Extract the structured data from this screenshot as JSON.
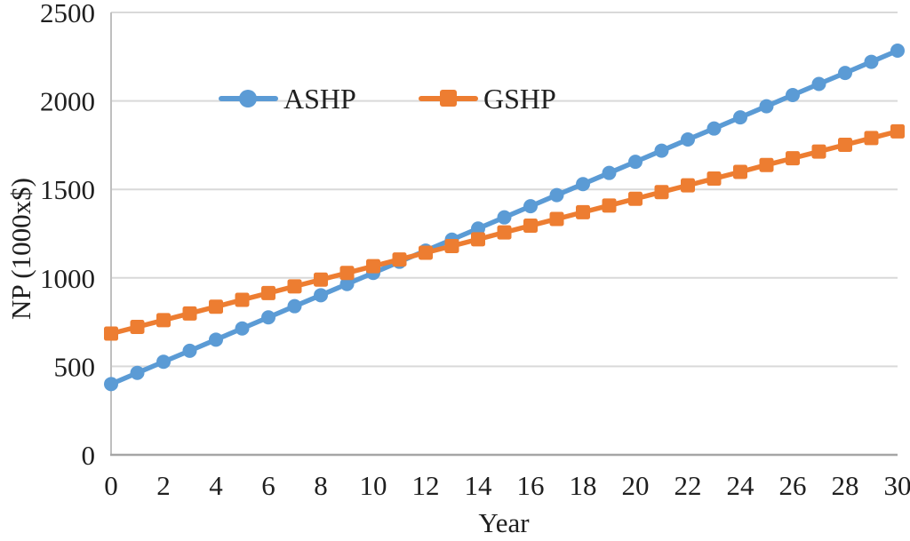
{
  "chart_data": {
    "type": "line",
    "title": "",
    "xlabel": "Year",
    "ylabel": "NP (1000x$)",
    "xlim": [
      0,
      30
    ],
    "ylim": [
      0,
      2500
    ],
    "xticks": [
      0,
      2,
      4,
      6,
      8,
      10,
      12,
      14,
      16,
      18,
      20,
      22,
      24,
      26,
      28,
      30
    ],
    "yticks": [
      0,
      500,
      1000,
      1500,
      2000,
      2500
    ],
    "grid": "horizontal",
    "legend_position": "top-inside",
    "x": [
      0,
      1,
      2,
      3,
      4,
      5,
      6,
      7,
      8,
      9,
      10,
      11,
      12,
      13,
      14,
      15,
      16,
      17,
      18,
      19,
      20,
      21,
      22,
      23,
      24,
      25,
      26,
      27,
      28,
      29,
      30
    ],
    "series": [
      {
        "name": "ASHP",
        "color": "#5B9BD5",
        "marker": "circle",
        "values": [
          400,
          463,
          526,
          588,
          651,
          714,
          777,
          840,
          902,
          965,
          1028,
          1091,
          1154,
          1216,
          1279,
          1342,
          1405,
          1468,
          1530,
          1593,
          1656,
          1719,
          1782,
          1844,
          1907,
          1970,
          2033,
          2096,
          2158,
          2221,
          2284
        ]
      },
      {
        "name": "GSHP",
        "color": "#ED7D31",
        "marker": "square",
        "values": [
          685,
          723,
          761,
          799,
          837,
          876,
          914,
          952,
          990,
          1028,
          1066,
          1104,
          1142,
          1180,
          1218,
          1257,
          1295,
          1333,
          1371,
          1409,
          1447,
          1485,
          1523,
          1561,
          1599,
          1638,
          1676,
          1714,
          1752,
          1790,
          1828
        ]
      }
    ],
    "style": {
      "text_color": "#1f1f1f",
      "gridline_color": "#d9d9d9",
      "axis_color": "#a6a6a6",
      "background": "#ffffff"
    }
  }
}
